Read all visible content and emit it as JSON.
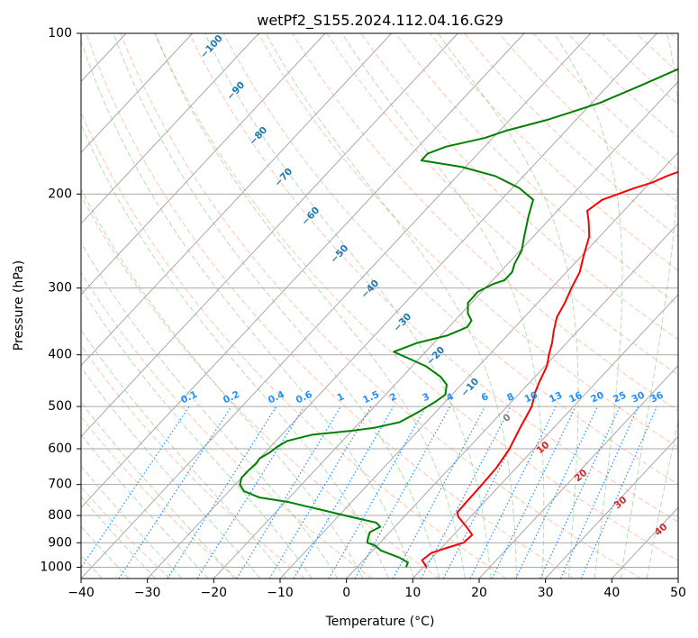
{
  "chart_data": {
    "type": "line",
    "title": "wetPf2_S155.2024.112.04.16.G29",
    "xlabel": "Temperature (°C)",
    "ylabel": "Pressure (hPa)",
    "xlim": [
      -40,
      50
    ],
    "ylim": [
      1050,
      100
    ],
    "y_scale": "log",
    "grid": true,
    "x_ticks": [
      -40,
      -30,
      -20,
      -10,
      0,
      10,
      20,
      30,
      40,
      50
    ],
    "x_tick_labels": [
      "−40",
      "−30",
      "−20",
      "−10",
      "0",
      "10",
      "20",
      "30",
      "40",
      "50"
    ],
    "y_ticks": [
      100,
      200,
      300,
      400,
      500,
      600,
      700,
      800,
      900,
      1000
    ],
    "y_tick_labels": [
      "100",
      "200",
      "300",
      "400",
      "500",
      "600",
      "700",
      "800",
      "900",
      "1000"
    ],
    "series": [
      {
        "role": "temperature",
        "color": "#ff0000",
        "points": [
          [
            10.5,
            1000
          ],
          [
            8.8,
            970
          ],
          [
            9.2,
            940
          ],
          [
            10.8,
            920
          ],
          [
            12.6,
            900
          ],
          [
            12.8,
            870
          ],
          [
            10.8,
            840
          ],
          [
            8.2,
            805
          ],
          [
            7.4,
            790
          ],
          [
            7.3,
            750
          ],
          [
            7.2,
            700
          ],
          [
            7.0,
            650
          ],
          [
            6.3,
            600
          ],
          [
            5.0,
            550
          ],
          [
            3.7,
            500
          ],
          [
            2.2,
            470
          ],
          [
            1.4,
            450
          ],
          [
            0.3,
            420
          ],
          [
            -1.0,
            400
          ],
          [
            -2.2,
            380
          ],
          [
            -3.7,
            360
          ],
          [
            -5.1,
            340
          ],
          [
            -5.9,
            320
          ],
          [
            -7.0,
            300
          ],
          [
            -8.0,
            280
          ],
          [
            -9.8,
            260
          ],
          [
            -11.6,
            240
          ],
          [
            -13.8,
            225
          ],
          [
            -15.5,
            215
          ],
          [
            -14.8,
            205
          ],
          [
            -13.2,
            200
          ],
          [
            -11.6,
            195
          ],
          [
            -9.6,
            190
          ],
          [
            -8.4,
            185
          ],
          [
            -6.6,
            180
          ],
          [
            -4.6,
            175
          ],
          [
            -2.3,
            170
          ],
          [
            0.4,
            165
          ],
          [
            2.1,
            160
          ],
          [
            2.5,
            155
          ],
          [
            2.3,
            150
          ],
          [
            0.8,
            140
          ],
          [
            -0.5,
            130
          ],
          [
            -1.4,
            125
          ],
          [
            -2.3,
            120
          ],
          [
            -3.1,
            115
          ],
          [
            -4.2,
            110
          ],
          [
            -5.7,
            105
          ],
          [
            -7.2,
            100
          ]
        ]
      },
      {
        "role": "dewpoint",
        "color": "#008000",
        "points": [
          [
            7.4,
            1000
          ],
          [
            7.0,
            980
          ],
          [
            5.1,
            960
          ],
          [
            1.2,
            930
          ],
          [
            -0.4,
            910
          ],
          [
            -1.9,
            900
          ],
          [
            -2.5,
            880
          ],
          [
            -3.0,
            860
          ],
          [
            -2.2,
            840
          ],
          [
            -3.4,
            825
          ],
          [
            -8.0,
            805
          ],
          [
            -12.5,
            785
          ],
          [
            -16.0,
            770
          ],
          [
            -19.5,
            755
          ],
          [
            -24.6,
            740
          ],
          [
            -27.8,
            720
          ],
          [
            -29.3,
            700
          ],
          [
            -30.0,
            680
          ],
          [
            -30.0,
            660
          ],
          [
            -29.8,
            640
          ],
          [
            -30.0,
            625
          ],
          [
            -29.3,
            610
          ],
          [
            -29.0,
            595
          ],
          [
            -28.3,
            580
          ],
          [
            -25.5,
            565
          ],
          [
            -20.0,
            555
          ],
          [
            -17.0,
            548
          ],
          [
            -14.0,
            535
          ],
          [
            -12.5,
            510
          ],
          [
            -11.5,
            490
          ],
          [
            -11.0,
            475
          ],
          [
            -12.2,
            455
          ],
          [
            -14.2,
            440
          ],
          [
            -18.0,
            420
          ],
          [
            -22.0,
            405
          ],
          [
            -24.8,
            395
          ],
          [
            -22.5,
            380
          ],
          [
            -19.0,
            368
          ],
          [
            -17.2,
            355
          ],
          [
            -17.5,
            345
          ],
          [
            -19.0,
            335
          ],
          [
            -20.5,
            320
          ],
          [
            -20.6,
            305
          ],
          [
            -19.4,
            295
          ],
          [
            -18.2,
            290
          ],
          [
            -18.2,
            280
          ],
          [
            -19.0,
            270
          ],
          [
            -19.8,
            255
          ],
          [
            -21.4,
            240
          ],
          [
            -23.6,
            220
          ],
          [
            -25.2,
            205
          ],
          [
            -28.9,
            195
          ],
          [
            -34.3,
            185
          ],
          [
            -40.5,
            178
          ],
          [
            -47.6,
            173
          ],
          [
            -47.6,
            168
          ],
          [
            -45.8,
            163
          ],
          [
            -41.2,
            157
          ],
          [
            -38.9,
            152
          ],
          [
            -34.2,
            145
          ],
          [
            -28.8,
            135
          ],
          [
            -25.0,
            125
          ],
          [
            -21.1,
            115
          ],
          [
            -17.8,
            108
          ],
          [
            -15.0,
            100
          ]
        ]
      }
    ],
    "isotherm_labels": [
      "−100",
      "−90",
      "−80",
      "−70",
      "−60",
      "−50",
      "−40",
      "−30",
      "−20",
      "−10"
    ],
    "mixing_ratio_labels": [
      "0.1",
      "0.2",
      "0.4",
      "0.6",
      "1",
      "1.5",
      "2",
      "3",
      "4",
      "6",
      "8",
      "10",
      "13",
      "16",
      "20",
      "25",
      "30",
      "36"
    ],
    "moist_adiabat_labels": [
      "0",
      "10",
      "20",
      "30",
      "40"
    ],
    "colors": {
      "isotherm": "#1f77b4",
      "mixing_ratio": "#1e90ff",
      "moist_adiabat_label": "#d62728",
      "dry_adiabat": "#ff7f50",
      "moist_adiabat": "#2ca02c",
      "grid": "#a9a9a9"
    }
  }
}
